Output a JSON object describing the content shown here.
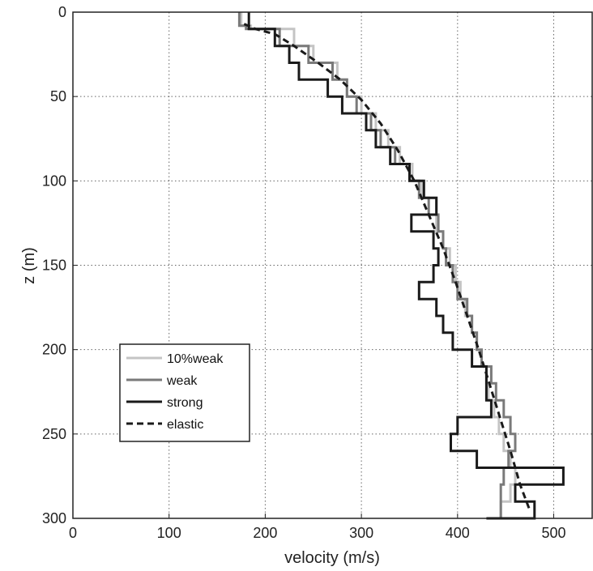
{
  "chart_data": {
    "type": "line",
    "title": "",
    "xlabel": "velocity (m/s)",
    "ylabel": "z (m)",
    "xlim": [
      0,
      540
    ],
    "ylim": [
      0,
      300
    ],
    "y_reversed": true,
    "grid": true,
    "legend_position": "lower-left",
    "xticks": [
      0,
      100,
      200,
      300,
      400,
      500
    ],
    "yticks": [
      0,
      50,
      100,
      150,
      200,
      250,
      300
    ],
    "series": [
      {
        "name": "10%weak",
        "color": "#c4c4c4",
        "style": "solid",
        "x": [
          175,
          175,
          185,
          185,
          230,
          230,
          250,
          250,
          275,
          275,
          285,
          285,
          300,
          300,
          315,
          315,
          328,
          328,
          340,
          340,
          353,
          353,
          363,
          363,
          378,
          378,
          385,
          385,
          392,
          392,
          398,
          398,
          403,
          403,
          408,
          408,
          415,
          415,
          420,
          420,
          425,
          425,
          430,
          430,
          432,
          432,
          438,
          438,
          443,
          443,
          448,
          448,
          455,
          455,
          460,
          460,
          455,
          455,
          445,
          445
        ],
        "y": [
          0,
          8,
          8,
          10,
          10,
          20,
          20,
          30,
          30,
          40,
          40,
          50,
          50,
          60,
          60,
          70,
          70,
          80,
          80,
          90,
          90,
          100,
          100,
          110,
          110,
          130,
          130,
          140,
          140,
          150,
          150,
          160,
          160,
          170,
          170,
          180,
          180,
          190,
          190,
          200,
          200,
          210,
          210,
          220,
          220,
          230,
          230,
          240,
          240,
          250,
          250,
          260,
          260,
          270,
          270,
          280,
          280,
          290,
          290,
          300
        ]
      },
      {
        "name": "weak",
        "color": "#7a7a7a",
        "style": "solid",
        "x": [
          173,
          173,
          180,
          180,
          215,
          215,
          245,
          245,
          270,
          270,
          285,
          285,
          295,
          295,
          310,
          310,
          320,
          320,
          335,
          335,
          350,
          350,
          360,
          360,
          370,
          370,
          380,
          380,
          385,
          385,
          388,
          388,
          395,
          395,
          400,
          400,
          410,
          410,
          415,
          415,
          420,
          420,
          425,
          425,
          435,
          435,
          440,
          440,
          448,
          448,
          455,
          455,
          460,
          460,
          453,
          453,
          448,
          448,
          445,
          445
        ],
        "y": [
          0,
          8,
          8,
          10,
          10,
          20,
          20,
          30,
          30,
          40,
          40,
          50,
          50,
          60,
          60,
          70,
          70,
          80,
          80,
          90,
          90,
          100,
          100,
          110,
          110,
          120,
          120,
          130,
          130,
          140,
          140,
          150,
          150,
          160,
          160,
          170,
          170,
          180,
          180,
          190,
          190,
          200,
          200,
          210,
          210,
          220,
          220,
          230,
          230,
          240,
          240,
          250,
          250,
          260,
          260,
          270,
          270,
          280,
          280,
          300
        ]
      },
      {
        "name": "strong",
        "color": "#1a1a1a",
        "style": "solid",
        "x": [
          183,
          183,
          210,
          210,
          225,
          225,
          235,
          235,
          265,
          265,
          280,
          280,
          305,
          305,
          315,
          315,
          330,
          330,
          350,
          350,
          365,
          365,
          378,
          378,
          352,
          352,
          375,
          375,
          380,
          380,
          375,
          375,
          360,
          360,
          378,
          378,
          385,
          385,
          395,
          395,
          415,
          415,
          430,
          430,
          435,
          435,
          400,
          400,
          393,
          393,
          420,
          420,
          510,
          510,
          460,
          460,
          480,
          480,
          460,
          460,
          450,
          450,
          435,
          435,
          430,
          430
        ],
        "y": [
          0,
          10,
          10,
          20,
          20,
          30,
          30,
          40,
          40,
          50,
          50,
          60,
          60,
          70,
          70,
          80,
          80,
          90,
          90,
          100,
          100,
          110,
          110,
          120,
          120,
          130,
          130,
          140,
          140,
          150,
          150,
          160,
          160,
          170,
          170,
          180,
          180,
          190,
          190,
          200,
          200,
          210,
          210,
          230,
          230,
          240,
          240,
          250,
          250,
          260,
          260,
          270,
          270,
          280,
          280,
          290,
          290,
          300,
          300,
          300,
          300,
          300,
          300,
          300,
          300,
          300
        ]
      },
      {
        "name": "elastic",
        "color": "#1a1a1a",
        "style": "dashed",
        "x": [
          178,
          190,
          210,
          230,
          255,
          278,
          300,
          320,
          338,
          355,
          370,
          385,
          398,
          410,
          422,
          433,
          444,
          455,
          465,
          475
        ],
        "y": [
          7,
          10,
          13,
          20,
          30,
          40,
          52,
          66,
          82,
          100,
          120,
          140,
          160,
          180,
          200,
          220,
          240,
          260,
          280,
          295
        ]
      }
    ]
  }
}
